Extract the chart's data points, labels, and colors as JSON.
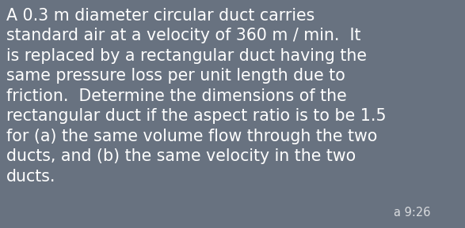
{
  "background_color": "#687280",
  "text_color": "#ffffff",
  "text_lines": [
    "A 0.3 m diameter circular duct carries",
    "standard air at a velocity of 360 m / min.  It",
    "is replaced by a rectangular duct having the",
    "same pressure loss per unit length due to",
    "friction.  Determine the dimensions of the",
    "rectangular duct if the aspect ratio is to be 1.5",
    "for (a) the same volume flow through the two",
    "ducts, and (b) the same velocity in the two",
    "ducts."
  ],
  "timestamp": "a 9:26",
  "font_size": 14.8,
  "timestamp_font_size": 10.5,
  "figsize": [
    5.87,
    2.89
  ],
  "dpi": 100
}
